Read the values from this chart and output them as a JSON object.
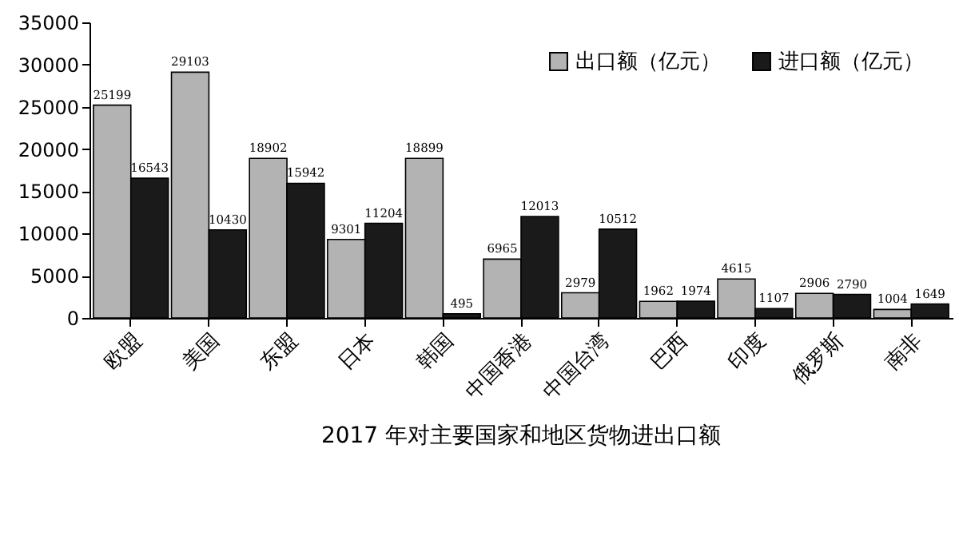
{
  "chart_data": {
    "type": "bar",
    "title": "2017 年对主要国家和地区货物进出口额",
    "categories": [
      "欧盟",
      "美国",
      "东盟",
      "日本",
      "韩国",
      "中国香港",
      "中国台湾",
      "巴西",
      "印度",
      "俄罗斯",
      "南非"
    ],
    "series": [
      {
        "name": "出口额（亿元）",
        "color": "#b3b3b3",
        "values": [
          25199,
          29103,
          18902,
          9301,
          18899,
          6965,
          2979,
          1962,
          4615,
          2906,
          1004
        ]
      },
      {
        "name": "进口额（亿元）",
        "color": "#1a1a1a",
        "values": [
          16543,
          10430,
          15942,
          11204,
          495,
          12013,
          10512,
          1974,
          1107,
          2790,
          1649
        ]
      }
    ],
    "ylim": [
      0,
      35000
    ],
    "yticks": [
      0,
      5000,
      10000,
      15000,
      20000,
      25000,
      30000,
      35000
    ],
    "grid": false,
    "legend": "top right",
    "data_labels": true
  }
}
